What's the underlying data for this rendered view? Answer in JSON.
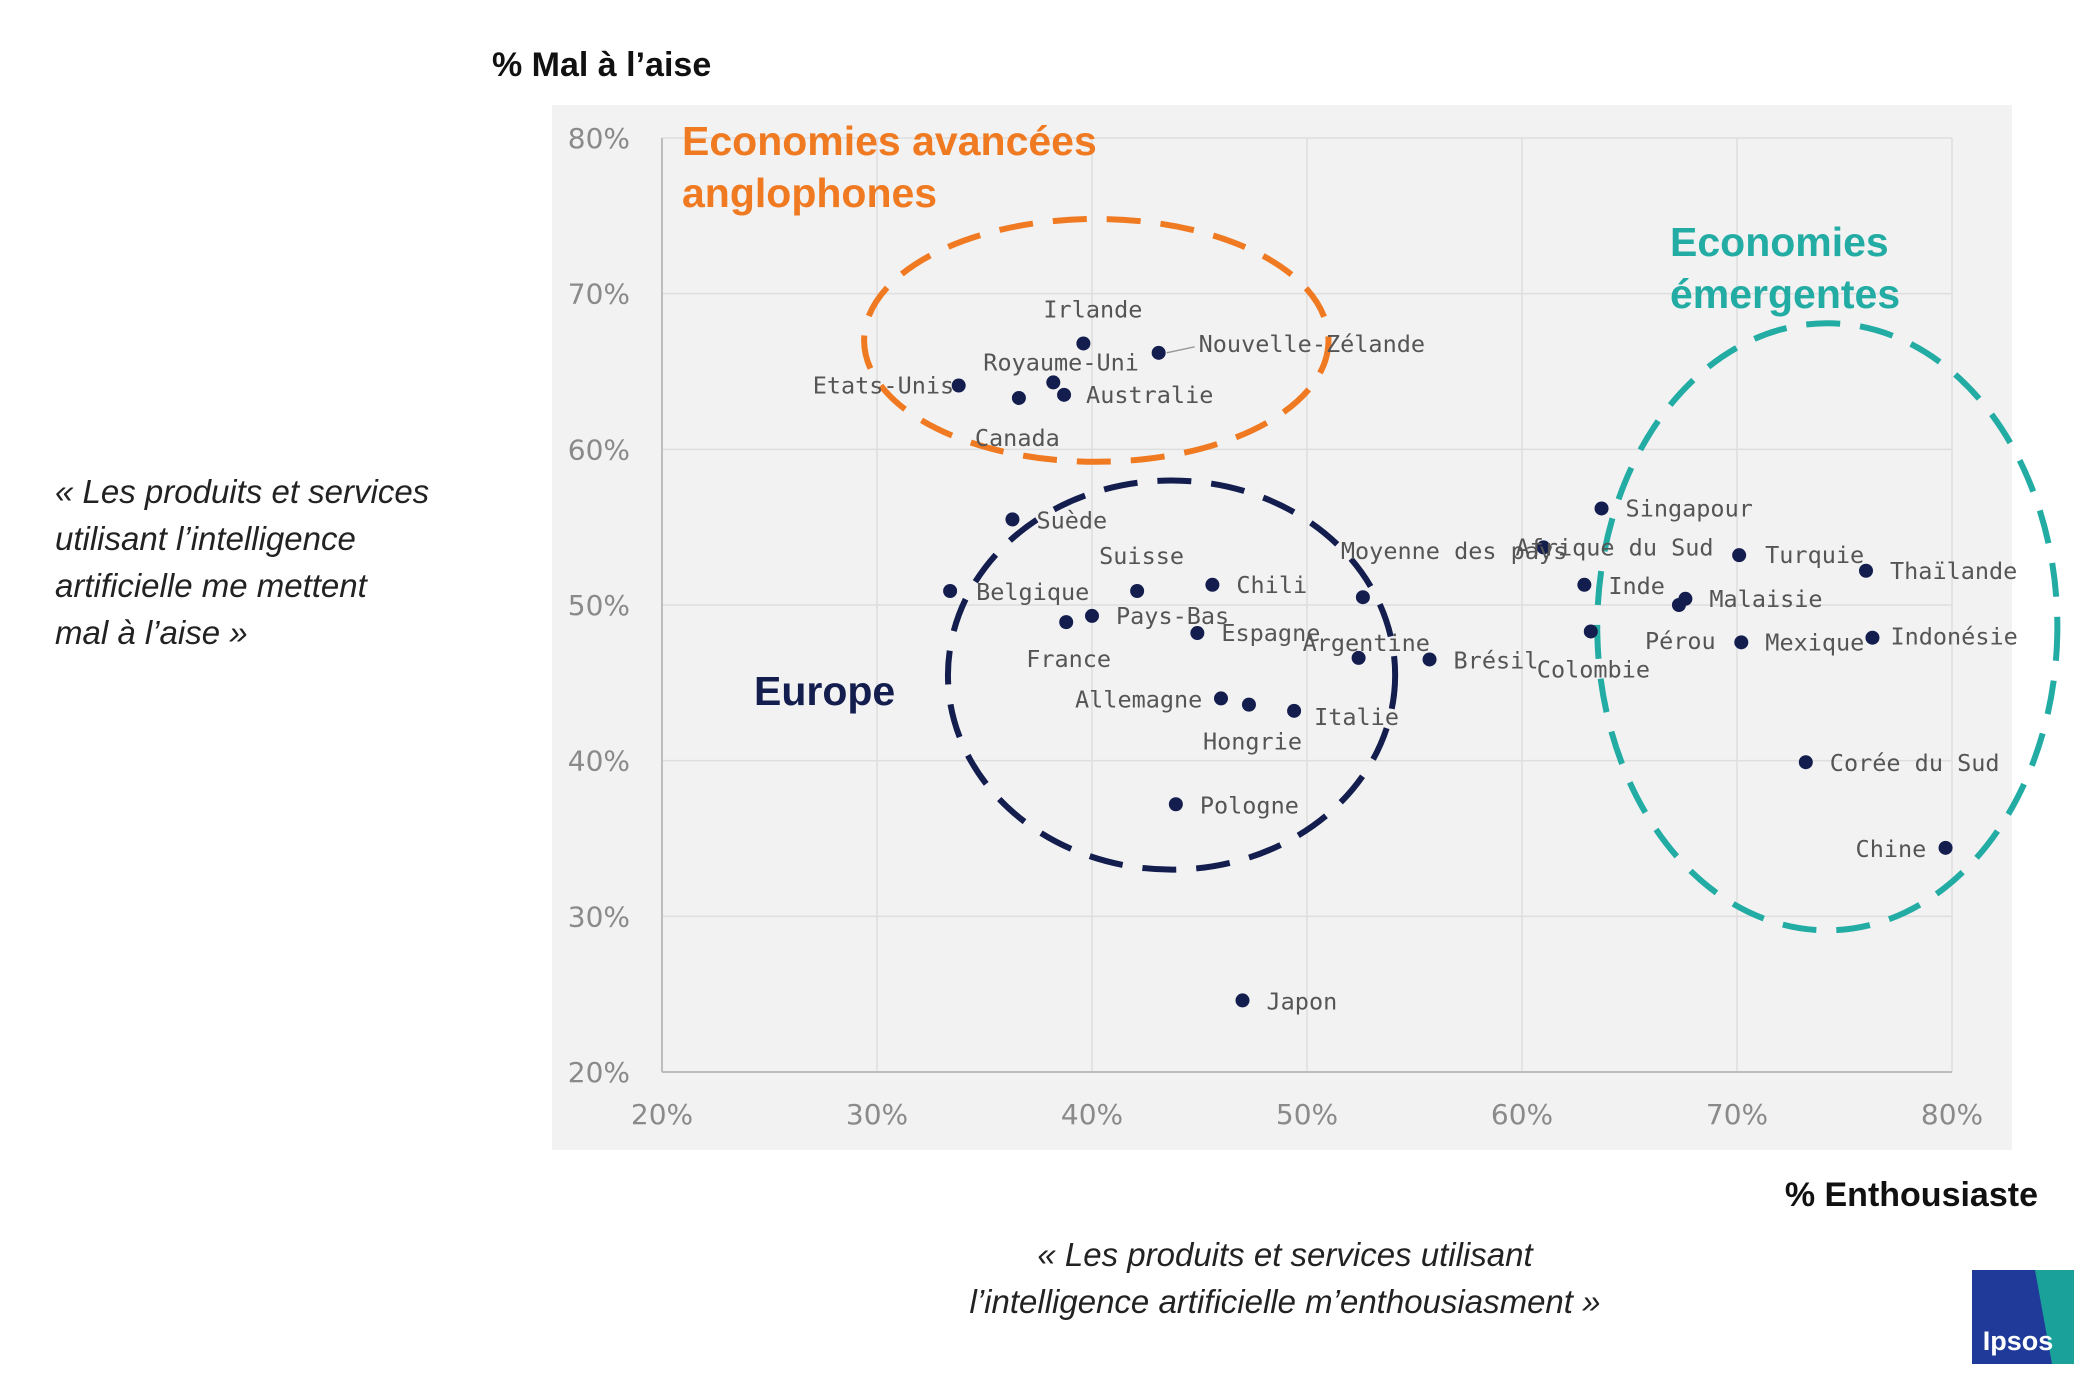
{
  "chart_data": {
    "type": "scatter",
    "title": "",
    "ylabel": "% Mal à l’aise",
    "xlabel": "% Enthousiaste",
    "y_caption": [
      "« Les produits et services",
      "utilisant l’intelligence",
      "artificielle me mettent",
      "mal à l’aise »"
    ],
    "x_caption": [
      "« Les produits et services utilisant",
      "l’intelligence artificielle m’enthousiasment »"
    ],
    "xlim": [
      20,
      80
    ],
    "ylim": [
      20,
      80
    ],
    "x_ticks": [
      20,
      30,
      40,
      50,
      60,
      70,
      80
    ],
    "y_ticks": [
      20,
      30,
      40,
      50,
      60,
      70,
      80
    ],
    "x_tick_labels": [
      "20%",
      "30%",
      "40%",
      "50%",
      "60%",
      "70%",
      "80%"
    ],
    "y_tick_labels": [
      "20%",
      "30%",
      "40%",
      "50%",
      "60%",
      "70%",
      "80%"
    ],
    "grid": true,
    "point_color": "#131d4e",
    "points": [
      {
        "label": "Irlande",
        "x": 39.6,
        "y": 66.8
      },
      {
        "label": "Nouvelle-Zélande",
        "x": 43.1,
        "y": 66.2
      },
      {
        "label": "Royaume-Uni",
        "x": 38.2,
        "y": 64.3
      },
      {
        "label": "Etats-Unis",
        "x": 33.8,
        "y": 64.1
      },
      {
        "label": "Canada",
        "x": 36.6,
        "y": 63.3
      },
      {
        "label": "Australie",
        "x": 38.7,
        "y": 63.5
      },
      {
        "label": "Suède",
        "x": 36.3,
        "y": 55.5
      },
      {
        "label": "Belgique",
        "x": 33.4,
        "y": 50.9
      },
      {
        "label": "Suisse",
        "x": 42.1,
        "y": 50.9
      },
      {
        "label": "Chili",
        "x": 45.6,
        "y": 51.3
      },
      {
        "label": "Pays-Bas",
        "x": 40.0,
        "y": 49.3
      },
      {
        "label": "France",
        "x": 38.8,
        "y": 48.9
      },
      {
        "label": "Espagne",
        "x": 44.9,
        "y": 48.2
      },
      {
        "label": "Moyenne des pays",
        "x": 52.6,
        "y": 50.5
      },
      {
        "label": "Allemagne",
        "x": 46.0,
        "y": 44.0
      },
      {
        "label": "Hongrie",
        "x": 47.3,
        "y": 43.6
      },
      {
        "label": "Argentine",
        "x": 52.4,
        "y": 46.6
      },
      {
        "label": "Italie",
        "x": 49.4,
        "y": 43.2
      },
      {
        "label": "Pologne",
        "x": 43.9,
        "y": 37.2
      },
      {
        "label": "Japon",
        "x": 47.0,
        "y": 24.6
      },
      {
        "label": "Brésil",
        "x": 55.7,
        "y": 46.5
      },
      {
        "label": "Singapour",
        "x": 63.7,
        "y": 56.2
      },
      {
        "label": "Afrique du Sud",
        "x": 61.0,
        "y": 53.7
      },
      {
        "label": "Turquie",
        "x": 70.1,
        "y": 53.2
      },
      {
        "label": "Thaïlande",
        "x": 76.0,
        "y": 52.2
      },
      {
        "label": "Inde",
        "x": 62.9,
        "y": 51.3
      },
      {
        "label": "Malaisie",
        "x": 67.6,
        "y": 50.4
      },
      {
        "label": "Pérou",
        "x": 67.3,
        "y": 50.0
      },
      {
        "label": "Colombie",
        "x": 63.2,
        "y": 48.3
      },
      {
        "label": "Mexique",
        "x": 70.2,
        "y": 47.6
      },
      {
        "label": "Indonésie",
        "x": 76.3,
        "y": 47.9
      },
      {
        "label": "Corée du Sud",
        "x": 73.2,
        "y": 39.9
      },
      {
        "label": "Chine",
        "x": 79.7,
        "y": 34.4
      }
    ],
    "groups": [
      {
        "name": [
          "Economies avancées",
          "anglophones"
        ],
        "color": "#f07a21"
      },
      {
        "name": [
          "Europe"
        ],
        "color": "#131d4e"
      },
      {
        "name": [
          "Economies",
          "émergentes"
        ],
        "color": "#22aca4"
      }
    ]
  },
  "logo": {
    "text": "Ipsos",
    "color_blue": "#1f3a99",
    "color_teal": "#1aa29a"
  }
}
